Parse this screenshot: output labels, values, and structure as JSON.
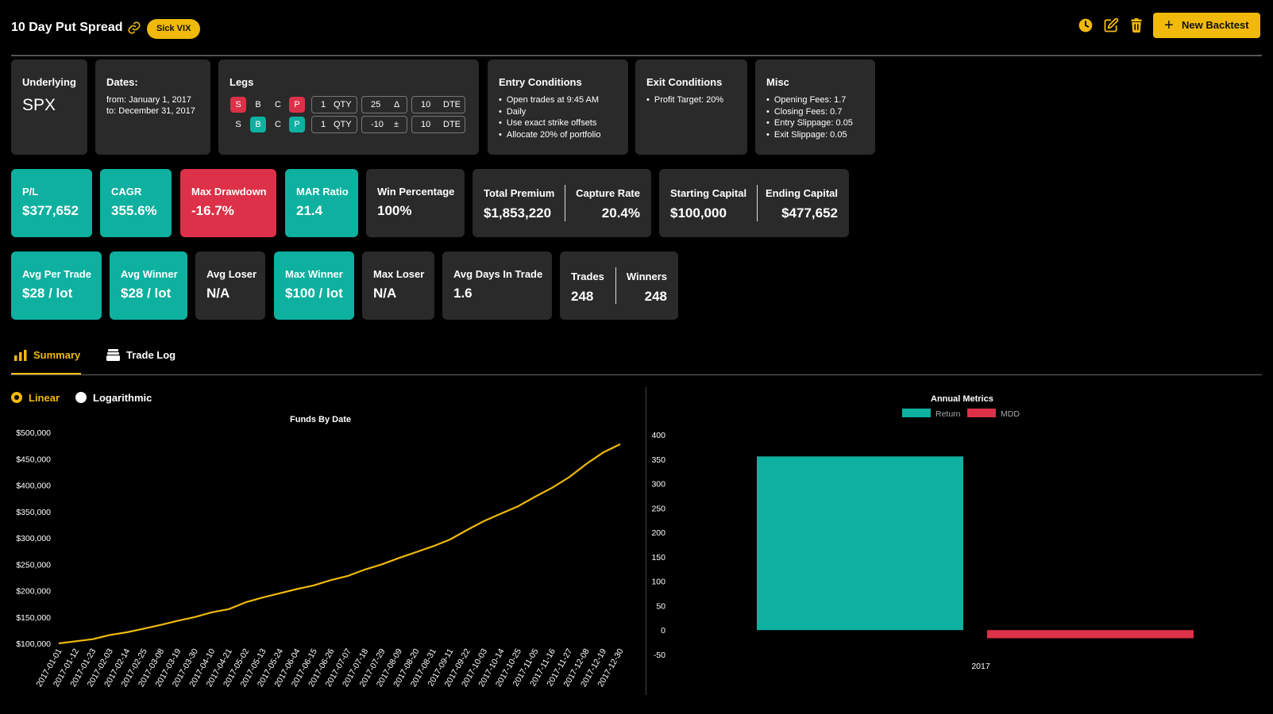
{
  "header": {
    "title": "10 Day Put Spread",
    "tag": "Sick VIX",
    "new_backtest_label": "New Backtest",
    "icons": [
      "link-icon",
      "clock-icon",
      "edit-icon",
      "trash-icon",
      "plus-icon"
    ]
  },
  "config": {
    "underlying": {
      "label": "Underlying",
      "value": "SPX"
    },
    "dates": {
      "label": "Dates:",
      "from": "from: January 1, 2017",
      "to": "to: December 31, 2017"
    },
    "legs": {
      "label": "Legs",
      "rows": [
        {
          "s": "S",
          "b": "B",
          "c": "C",
          "p": "P",
          "qty": "1",
          "qty_unit": "QTY",
          "strike": "25",
          "strike_unit": "Δ",
          "dte": "10",
          "dte_unit": "DTE"
        },
        {
          "s": "S",
          "b": "B",
          "c": "C",
          "p": "P",
          "qty": "1",
          "qty_unit": "QTY",
          "strike": "-10",
          "strike_unit": "±",
          "dte": "10",
          "dte_unit": "DTE"
        }
      ]
    },
    "entry": {
      "label": "Entry Conditions",
      "items": [
        "Open trades at 9:45 AM",
        "Daily",
        "Use exact strike offsets",
        "Allocate 20% of portfolio"
      ]
    },
    "exit": {
      "label": "Exit Conditions",
      "items": [
        "Profit Target: 20%"
      ]
    },
    "misc": {
      "label": "Misc",
      "items": [
        "Opening Fees: 1.7",
        "Closing Fees: 0.7",
        "Entry Slippage: 0.05",
        "Exit Slippage: 0.05"
      ]
    }
  },
  "stats1": {
    "pl": {
      "label": "P/L",
      "value": "$377,652"
    },
    "cagr": {
      "label": "CAGR",
      "value": "355.6%"
    },
    "max_drawdown": {
      "label": "Max Drawdown",
      "value": "-16.7%"
    },
    "mar_ratio": {
      "label": "MAR Ratio",
      "value": "21.4"
    },
    "win_pct": {
      "label": "Win Percentage",
      "value": "100%"
    },
    "total_premium": {
      "label": "Total Premium",
      "value": "$1,853,220"
    },
    "capture_rate": {
      "label": "Capture Rate",
      "value": "20.4%"
    },
    "starting_capital": {
      "label": "Starting Capital",
      "value": "$100,000"
    },
    "ending_capital": {
      "label": "Ending Capital",
      "value": "$477,652"
    }
  },
  "stats2": {
    "avg_per_trade": {
      "label": "Avg Per Trade",
      "value": "$28 / lot"
    },
    "avg_winner": {
      "label": "Avg Winner",
      "value": "$28 / lot"
    },
    "avg_loser": {
      "label": "Avg Loser",
      "value": "N/A"
    },
    "max_winner": {
      "label": "Max Winner",
      "value": "$100 / lot"
    },
    "max_loser": {
      "label": "Max Loser",
      "value": "N/A"
    },
    "avg_days": {
      "label": "Avg Days In Trade",
      "value": "1.6"
    },
    "trades": {
      "label": "Trades",
      "value": "248"
    },
    "winners": {
      "label": "Winners",
      "value": "248"
    }
  },
  "tabs": {
    "summary": "Summary",
    "trade_log": "Trade Log"
  },
  "scale": {
    "linear": "Linear",
    "logarithmic": "Logarithmic",
    "selected": "Linear"
  },
  "colors": {
    "accent": "#f0b90b",
    "teal": "#0eb0a0",
    "red": "#dc3148",
    "card": "#2a2a2a"
  },
  "chart_data": [
    {
      "type": "line",
      "title": "Funds By Date",
      "x": [
        "2017-01-01",
        "2017-01-12",
        "2017-01-23",
        "2017-02-03",
        "2017-02-14",
        "2017-02-25",
        "2017-03-08",
        "2017-03-19",
        "2017-03-30",
        "2017-04-10",
        "2017-04-21",
        "2017-05-02",
        "2017-05-13",
        "2017-05-24",
        "2017-06-04",
        "2017-06-15",
        "2017-06-26",
        "2017-07-07",
        "2017-07-18",
        "2017-07-29",
        "2017-08-09",
        "2017-08-20",
        "2017-08-31",
        "2017-09-11",
        "2017-09-22",
        "2017-10-03",
        "2017-10-14",
        "2017-10-25",
        "2017-11-05",
        "2017-11-16",
        "2017-11-27",
        "2017-12-08",
        "2017-12-19",
        "2017-12-30"
      ],
      "values": [
        100000,
        104000,
        108000,
        116000,
        121000,
        128000,
        135000,
        143000,
        150000,
        159000,
        165000,
        178000,
        187000,
        195000,
        203000,
        210000,
        220000,
        228000,
        240000,
        250000,
        262000,
        273000,
        284000,
        297000,
        315000,
        332000,
        346000,
        360000,
        378000,
        395000,
        415000,
        440000,
        462000,
        477652
      ],
      "ylim": [
        100000,
        500000
      ],
      "yticks": [
        "$100,000",
        "$150,000",
        "$200,000",
        "$250,000",
        "$300,000",
        "$350,000",
        "$400,000",
        "$450,000",
        "$500,000"
      ],
      "color": "#f0b90b"
    },
    {
      "type": "bar",
      "title": "Annual Metrics",
      "categories": [
        "2017"
      ],
      "series": [
        {
          "name": "Return",
          "values": [
            355.6
          ],
          "color": "#0eb0a0"
        },
        {
          "name": "MDD",
          "values": [
            -16.7
          ],
          "color": "#dc3148"
        }
      ],
      "ylim": [
        -50,
        400
      ],
      "yticks": [
        "-50",
        "0",
        "50",
        "100",
        "150",
        "200",
        "250",
        "300",
        "350",
        "400"
      ],
      "legend": "top"
    }
  ]
}
